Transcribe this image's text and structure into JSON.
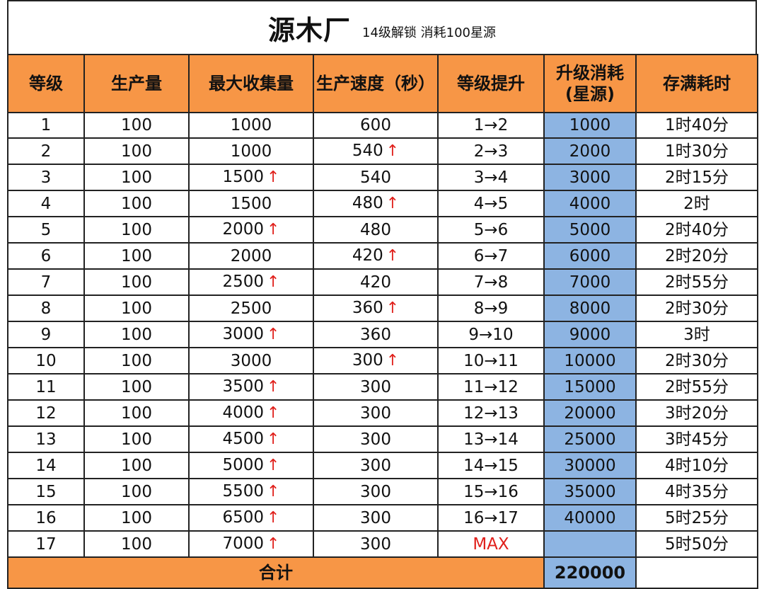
{
  "title": {
    "main": "源木厂",
    "sub": "14级解锁 消耗100星源"
  },
  "headers": {
    "level": "等级",
    "production": "生产量",
    "max_collect": "最大收集量",
    "speed": "生产速度（秒）",
    "upgrade": "等级提升",
    "cost_line1": "升级消耗",
    "cost_line2": "(星源)",
    "fill_time": "存满耗时"
  },
  "up_arrow": "↑",
  "rows": [
    {
      "level": "1",
      "production": "100",
      "max_collect": "1000",
      "max_up": false,
      "speed": "600",
      "speed_up": false,
      "upgrade": "1→2",
      "cost": "1000",
      "fill_time": "1时40分"
    },
    {
      "level": "2",
      "production": "100",
      "max_collect": "1000",
      "max_up": false,
      "speed": "540",
      "speed_up": true,
      "upgrade": "2→3",
      "cost": "2000",
      "fill_time": "1时30分"
    },
    {
      "level": "3",
      "production": "100",
      "max_collect": "1500",
      "max_up": true,
      "speed": "540",
      "speed_up": false,
      "upgrade": "3→4",
      "cost": "3000",
      "fill_time": "2时15分"
    },
    {
      "level": "4",
      "production": "100",
      "max_collect": "1500",
      "max_up": false,
      "speed": "480",
      "speed_up": true,
      "upgrade": "4→5",
      "cost": "4000",
      "fill_time": "2时"
    },
    {
      "level": "5",
      "production": "100",
      "max_collect": "2000",
      "max_up": true,
      "speed": "480",
      "speed_up": false,
      "upgrade": "5→6",
      "cost": "5000",
      "fill_time": "2时40分"
    },
    {
      "level": "6",
      "production": "100",
      "max_collect": "2000",
      "max_up": false,
      "speed": "420",
      "speed_up": true,
      "upgrade": "6→7",
      "cost": "6000",
      "fill_time": "2时20分"
    },
    {
      "level": "7",
      "production": "100",
      "max_collect": "2500",
      "max_up": true,
      "speed": "420",
      "speed_up": false,
      "upgrade": "7→8",
      "cost": "7000",
      "fill_time": "2时55分"
    },
    {
      "level": "8",
      "production": "100",
      "max_collect": "2500",
      "max_up": false,
      "speed": "360",
      "speed_up": true,
      "upgrade": "8→9",
      "cost": "8000",
      "fill_time": "2时30分"
    },
    {
      "level": "9",
      "production": "100",
      "max_collect": "3000",
      "max_up": true,
      "speed": "360",
      "speed_up": false,
      "upgrade": "9→10",
      "cost": "9000",
      "fill_time": "3时"
    },
    {
      "level": "10",
      "production": "100",
      "max_collect": "3000",
      "max_up": false,
      "speed": "300",
      "speed_up": true,
      "upgrade": "10→11",
      "cost": "10000",
      "fill_time": "2时30分"
    },
    {
      "level": "11",
      "production": "100",
      "max_collect": "3500",
      "max_up": true,
      "speed": "300",
      "speed_up": false,
      "upgrade": "11→12",
      "cost": "15000",
      "fill_time": "2时55分"
    },
    {
      "level": "12",
      "production": "100",
      "max_collect": "4000",
      "max_up": true,
      "speed": "300",
      "speed_up": false,
      "upgrade": "12→13",
      "cost": "20000",
      "fill_time": "3时20分"
    },
    {
      "level": "13",
      "production": "100",
      "max_collect": "4500",
      "max_up": true,
      "speed": "300",
      "speed_up": false,
      "upgrade": "13→14",
      "cost": "25000",
      "fill_time": "3时45分"
    },
    {
      "level": "14",
      "production": "100",
      "max_collect": "5000",
      "max_up": true,
      "speed": "300",
      "speed_up": false,
      "upgrade": "14→15",
      "cost": "30000",
      "fill_time": "4时10分"
    },
    {
      "level": "15",
      "production": "100",
      "max_collect": "5500",
      "max_up": true,
      "speed": "300",
      "speed_up": false,
      "upgrade": "15→16",
      "cost": "35000",
      "fill_time": "4时35分"
    },
    {
      "level": "16",
      "production": "100",
      "max_collect": "6500",
      "max_up": true,
      "speed": "300",
      "speed_up": false,
      "upgrade": "16→17",
      "cost": "40000",
      "fill_time": "5时25分"
    },
    {
      "level": "17",
      "production": "100",
      "max_collect": "7000",
      "max_up": true,
      "speed": "300",
      "speed_up": false,
      "upgrade": "MAX",
      "cost": "",
      "fill_time": "5时50分",
      "upgrade_max": true
    }
  ],
  "total": {
    "label": "合计",
    "value": "220000"
  },
  "colors": {
    "header_bg": "#f79646",
    "cost_bg": "#8db4e2",
    "arrow": "#e0201b"
  }
}
